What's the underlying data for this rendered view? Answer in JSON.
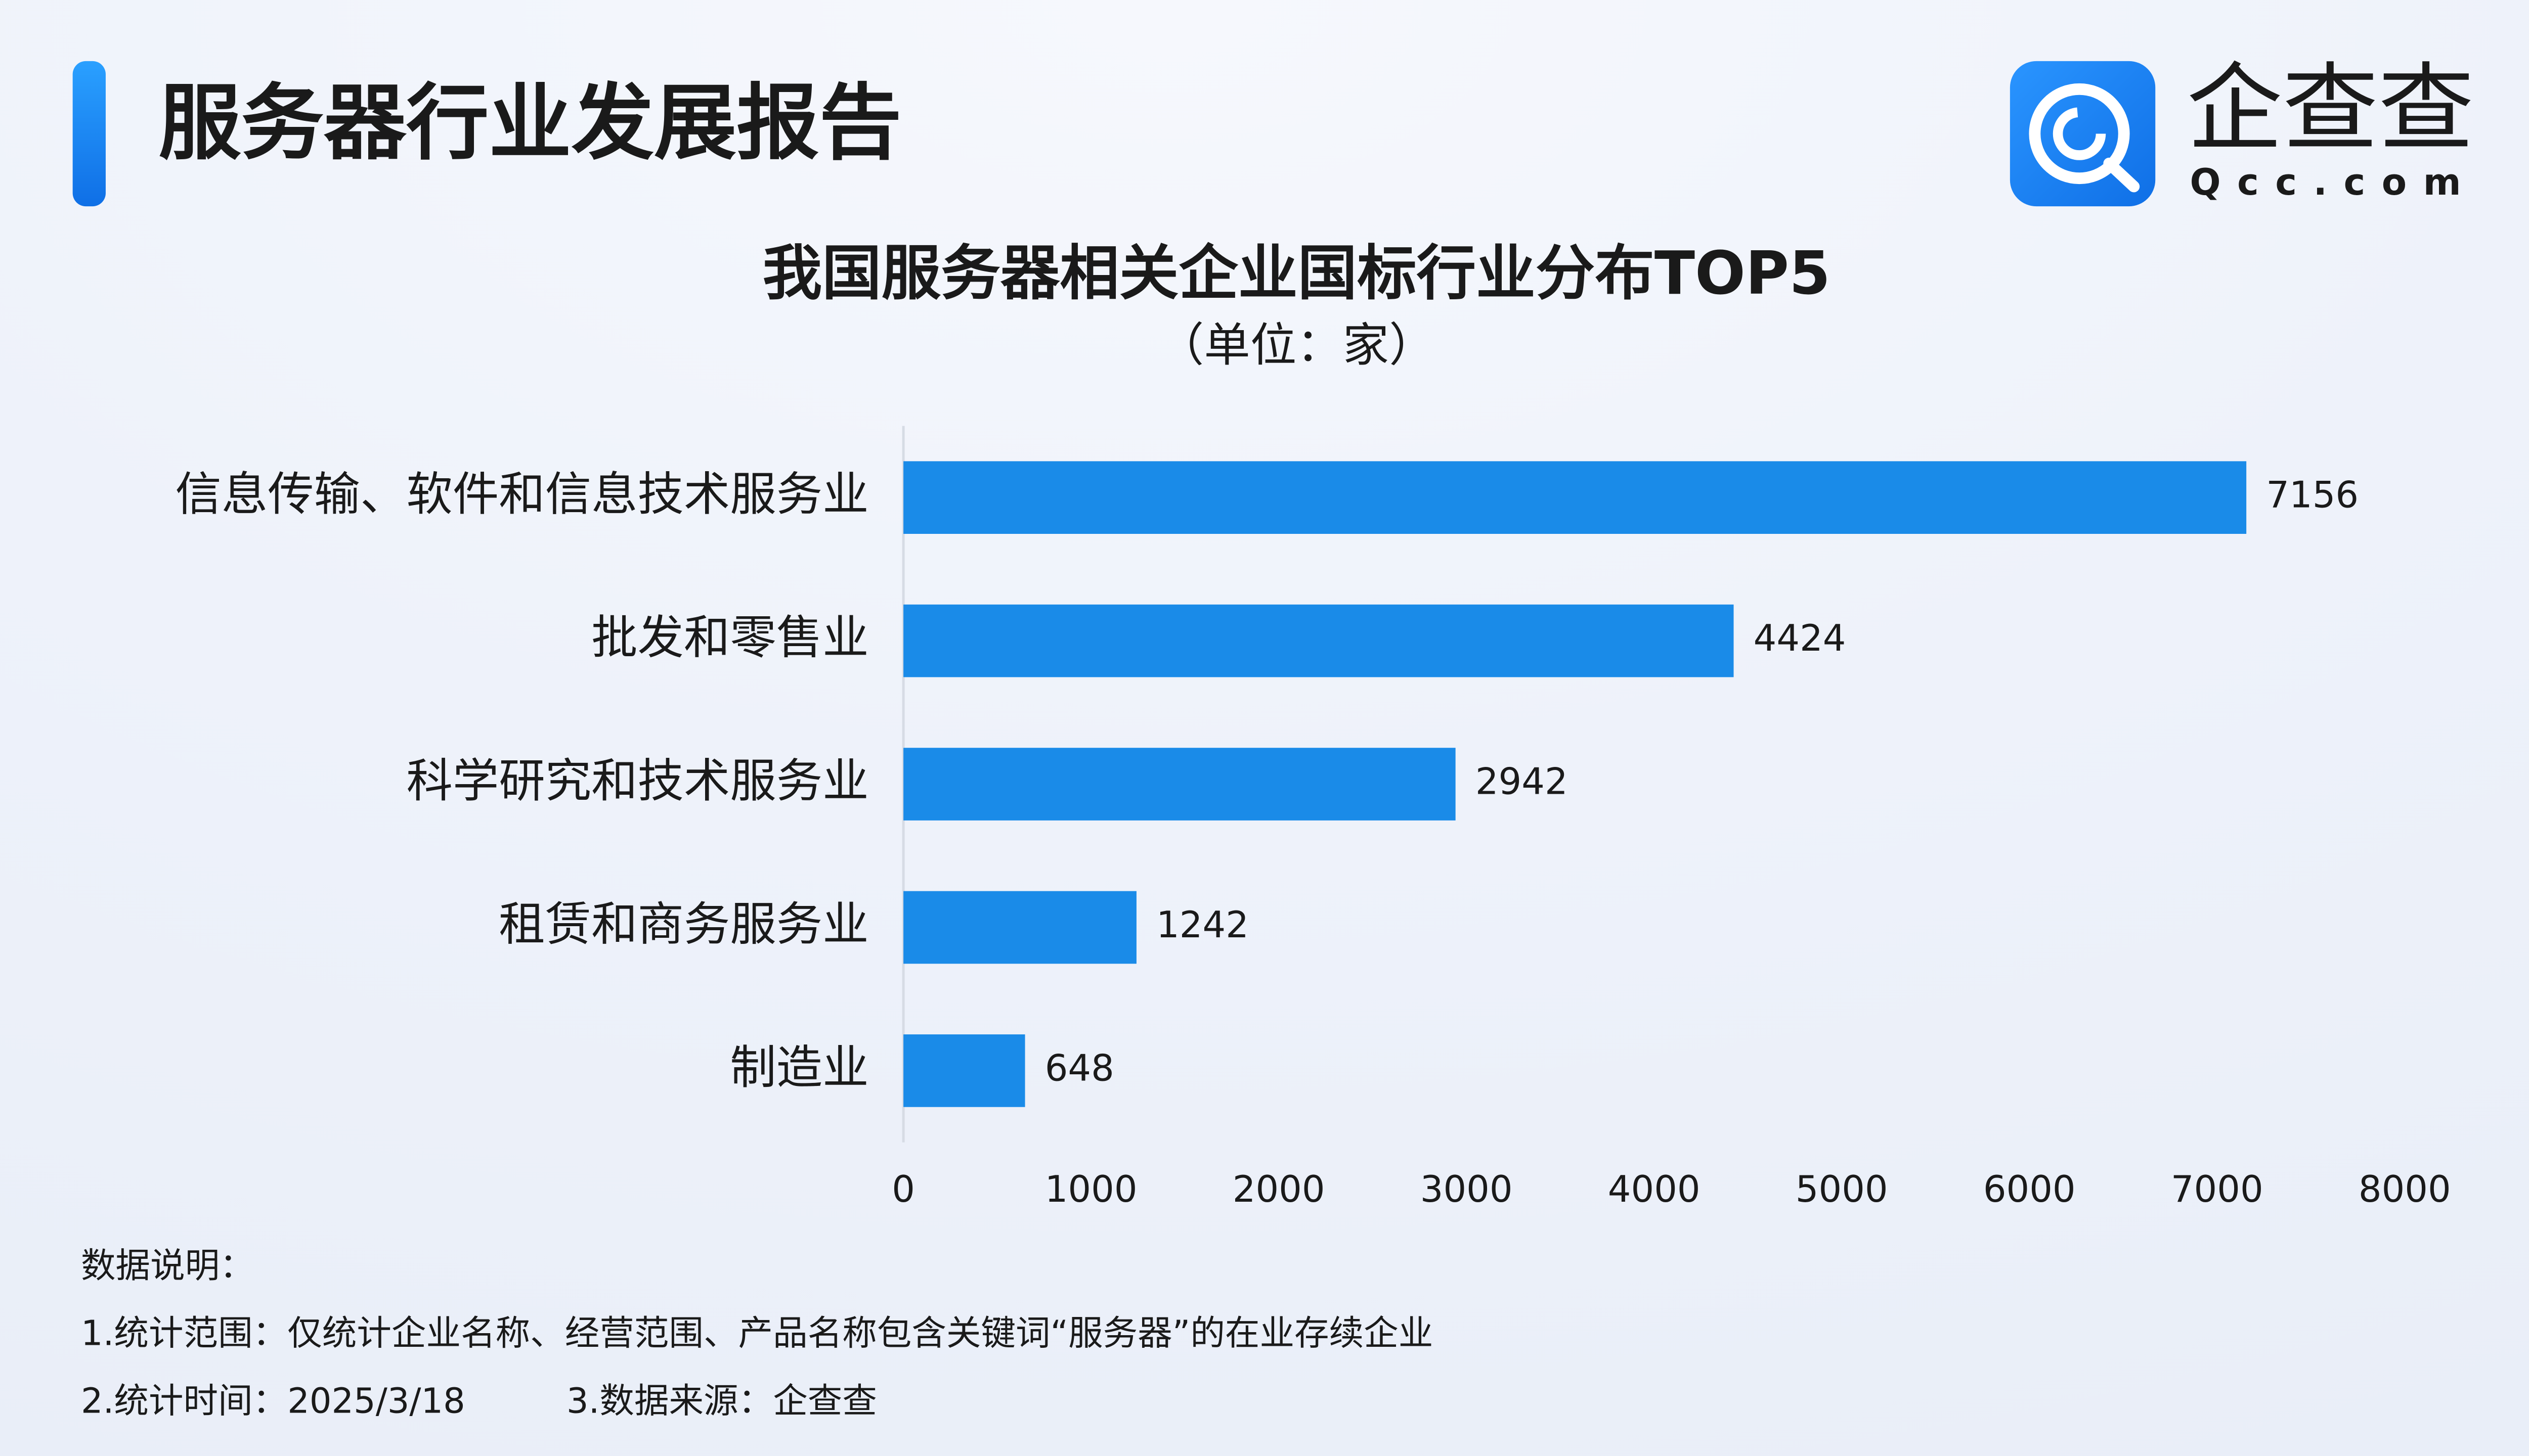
{
  "header": {
    "title": "服务器行业发展报告",
    "logo_name": "企查查",
    "logo_domain": "Qcc.com"
  },
  "chart_data": {
    "type": "bar",
    "orientation": "horizontal",
    "title": "我国服务器相关企业国标行业分布TOP5",
    "subtitle": "（单位：家）",
    "categories": [
      "信息传输、软件和信息技术服务业",
      "批发和零售业",
      "科学研究和技术服务业",
      "租赁和商务服务业",
      "制造业"
    ],
    "values": [
      7156,
      4424,
      2942,
      1242,
      648
    ],
    "color": "#1a8be8",
    "xlim": [
      0,
      8000
    ],
    "xticks": [
      0,
      1000,
      2000,
      3000,
      4000,
      5000,
      6000,
      7000,
      8000
    ]
  },
  "notes": {
    "heading": "数据说明：",
    "line1": "1.统计范围：仅统计企业名称、经营范围、产品名称包含关键词“服务器”的在业存续企业",
    "time": "2.统计时间：2025/3/18",
    "source": "3.数据来源：企查查"
  }
}
